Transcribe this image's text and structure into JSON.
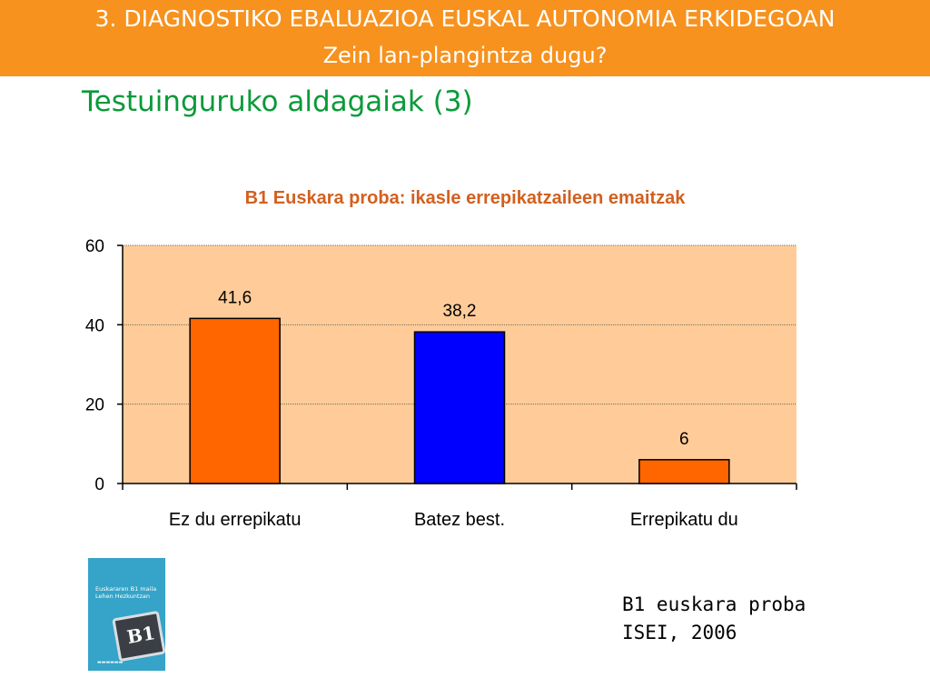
{
  "header": {
    "line1": "3. DIAGNOSTIKO EBALUAZIOA EUSKAL AUTONOMIA ERKIDEGOAN",
    "line2": "Zein lan-plangintza dugu?"
  },
  "subtitle": "Testuinguruko aldagaiak (3)",
  "chart_data": {
    "type": "bar",
    "title": "B1 Euskara proba: ikasle errepikatzaileen emaitzak",
    "categories": [
      "Ez du errepikatu",
      "Batez best.",
      "Errepikatu du"
    ],
    "values": [
      41.6,
      38.2,
      6
    ],
    "value_labels": [
      "41,6",
      "38,2",
      "6"
    ],
    "bar_colors": [
      "#ff6600",
      "#0000ff",
      "#ff6600"
    ],
    "ylim": [
      0,
      60
    ],
    "yticks": [
      0,
      20,
      40,
      60
    ],
    "grid": true,
    "plot_background": "#ffcc99",
    "xlabel": "",
    "ylabel": ""
  },
  "book_cover": {
    "title": "Euskararen B1 maila Lehen Hezkuntzan",
    "card_label": "B1"
  },
  "source": {
    "line1": "B1 euskara proba",
    "line2": "ISEI, 2006"
  },
  "colors": {
    "header_bg": "#f7921e",
    "subtitle": "#0a9a3a",
    "chart_title": "#d2601e"
  }
}
